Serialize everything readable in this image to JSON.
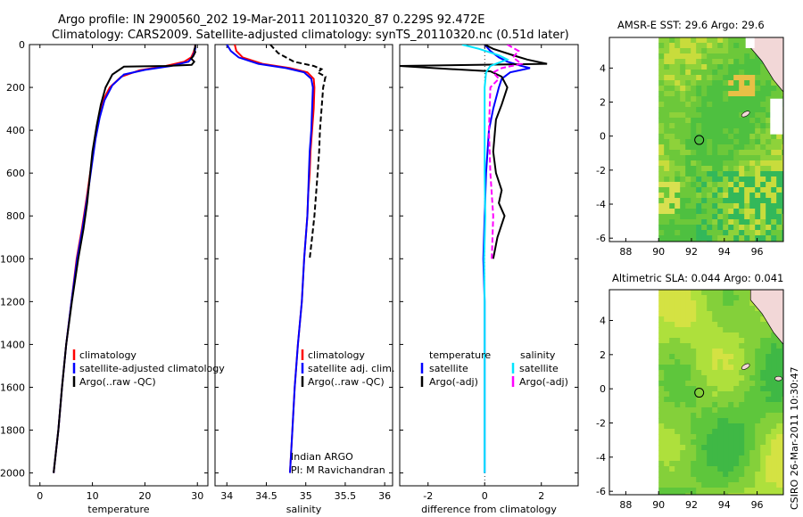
{
  "title": {
    "line1": "Argo profile: IN 2900560_202 19-Mar-2011 20110320_87 0.229S 92.472E",
    "line2": "Climatology: CARS2009. Satellite-adjusted climatology: synTS_20110320.nc (0.51d later)"
  },
  "colors": {
    "climatology": "#ff0000",
    "satellite": "#0000ff",
    "argo": "#000000",
    "sal_satellite": "#00e5ff",
    "sal_argo": "#ff00ff"
  },
  "watermark": "CSIRO 26-Mar-2011 10:30:47",
  "map_top": {
    "title": "AMSR-E SST: 29.6  Argo: 29.6",
    "field": "sst"
  },
  "map_bottom": {
    "title": "Altimetric SLA: 0.044  Argo: 0.041",
    "field": "sla"
  },
  "map_axes": {
    "xticks": [
      88,
      90,
      92,
      94,
      96
    ],
    "yticks": [
      4,
      2,
      0,
      -2,
      -4,
      -6
    ],
    "xlim": [
      87,
      97.6
    ],
    "ylim": [
      -6.2,
      5.8
    ],
    "data_xmin": 90,
    "float_lon": 92.472,
    "float_lat": -0.229
  },
  "chart_data": [
    {
      "type": "line",
      "id": "temperature",
      "xlabel": "temperature",
      "ylabel": "",
      "xlim": [
        -2,
        32
      ],
      "ylim": [
        0,
        2060
      ],
      "y_inverted": true,
      "xticks": [
        0,
        10,
        20,
        30
      ],
      "yticks": [
        0,
        200,
        400,
        600,
        800,
        1000,
        1200,
        1400,
        1600,
        1800,
        2000
      ],
      "legend": [
        "climatology",
        "satellite-adjusted climatology",
        "Argo(..raw -QC)"
      ],
      "series": [
        {
          "name": "climatology",
          "color": "climatology",
          "points": [
            [
              29.6,
              0
            ],
            [
              29.5,
              20
            ],
            [
              29.2,
              40
            ],
            [
              28.8,
              60
            ],
            [
              27.5,
              80
            ],
            [
              24,
              100
            ],
            [
              19,
              120
            ],
            [
              15.5,
              150
            ],
            [
              13.3,
              200
            ],
            [
              12,
              260
            ],
            [
              11.2,
              340
            ],
            [
              10.5,
              440
            ],
            [
              9.8,
              560
            ],
            [
              9,
              700
            ],
            [
              8,
              860
            ],
            [
              7,
              1000
            ],
            [
              6,
              1200
            ],
            [
              5,
              1400
            ],
            [
              4.2,
              1600
            ],
            [
              3.5,
              1800
            ],
            [
              2.6,
              2000
            ]
          ]
        },
        {
          "name": "satellite-adjusted climatology",
          "color": "satellite",
          "points": [
            [
              29.6,
              0
            ],
            [
              29.6,
              20
            ],
            [
              29.4,
              40
            ],
            [
              29,
              60
            ],
            [
              28.3,
              80
            ],
            [
              25,
              100
            ],
            [
              20,
              118
            ],
            [
              16,
              140
            ],
            [
              13.8,
              190
            ],
            [
              12.3,
              260
            ],
            [
              11.4,
              340
            ],
            [
              10.6,
              440
            ],
            [
              9.9,
              560
            ],
            [
              9.1,
              700
            ],
            [
              8.1,
              860
            ],
            [
              7.1,
              1000
            ],
            [
              6,
              1200
            ],
            [
              5,
              1400
            ],
            [
              4.2,
              1600
            ],
            [
              3.5,
              1800
            ],
            [
              2.6,
              2000
            ]
          ]
        },
        {
          "name": "Argo(..raw -QC)",
          "color": "argo",
          "points": [
            [
              29.6,
              0
            ],
            [
              29.6,
              10
            ],
            [
              29.4,
              25
            ],
            [
              29.6,
              35
            ],
            [
              29.2,
              55
            ],
            [
              28.8,
              65
            ],
            [
              29.4,
              80
            ],
            [
              28.9,
              95
            ],
            [
              24,
              100
            ],
            [
              16,
              103
            ],
            [
              13.8,
              140
            ],
            [
              12.5,
              200
            ],
            [
              11.6,
              280
            ],
            [
              10.8,
              380
            ],
            [
              10,
              500
            ],
            [
              9.5,
              620
            ],
            [
              9,
              740
            ],
            [
              8.3,
              860
            ],
            [
              7.3,
              1000
            ],
            [
              6.1,
              1200
            ],
            [
              5,
              1400
            ],
            [
              4.2,
              1600
            ],
            [
              3.5,
              1800
            ],
            [
              2.6,
              2000
            ]
          ]
        }
      ]
    },
    {
      "type": "line",
      "id": "salinity",
      "xlabel": "salinity",
      "ylabel": "",
      "xlim": [
        33.85,
        36.1
      ],
      "ylim": [
        0,
        2060
      ],
      "y_inverted": true,
      "xticks": [
        34,
        34.5,
        35,
        35.5,
        36
      ],
      "legend": [
        "climatology",
        "satellite adj. clim.",
        "Argo(..raw -QC)"
      ],
      "note": [
        "Indian ARGO",
        "PI: M Ravichandran"
      ],
      "series": [
        {
          "name": "climatology",
          "color": "climatology",
          "points": [
            [
              34.1,
              0
            ],
            [
              34.12,
              30
            ],
            [
              34.2,
              60
            ],
            [
              34.45,
              90
            ],
            [
              34.8,
              110
            ],
            [
              35.02,
              130
            ],
            [
              35.1,
              160
            ],
            [
              35.11,
              200
            ],
            [
              35.1,
              300
            ],
            [
              35.08,
              400
            ],
            [
              35.06,
              500
            ],
            [
              35.05,
              600
            ],
            [
              35.03,
              700
            ],
            [
              35.02,
              800
            ],
            [
              35.0,
              900
            ],
            [
              34.98,
              1000
            ],
            [
              34.95,
              1200
            ],
            [
              34.9,
              1400
            ],
            [
              34.86,
              1600
            ],
            [
              34.83,
              1800
            ],
            [
              34.8,
              2000
            ]
          ]
        },
        {
          "name": "satellite adj. clim.",
          "color": "satellite",
          "points": [
            [
              34.0,
              0
            ],
            [
              34.05,
              30
            ],
            [
              34.15,
              60
            ],
            [
              34.4,
              90
            ],
            [
              34.75,
              110
            ],
            [
              34.98,
              130
            ],
            [
              35.07,
              160
            ],
            [
              35.09,
              200
            ],
            [
              35.08,
              300
            ],
            [
              35.07,
              400
            ],
            [
              35.05,
              500
            ],
            [
              35.04,
              600
            ],
            [
              35.03,
              700
            ],
            [
              35.02,
              800
            ],
            [
              35.0,
              900
            ],
            [
              34.98,
              1000
            ],
            [
              34.95,
              1200
            ],
            [
              34.9,
              1400
            ],
            [
              34.86,
              1600
            ],
            [
              34.83,
              1800
            ],
            [
              34.8,
              2000
            ]
          ]
        },
        {
          "name": "Argo(..raw -QC)",
          "color": "argo",
          "points": [
            [
              34.55,
              0
            ],
            [
              34.6,
              20
            ],
            [
              34.65,
              40
            ],
            [
              34.75,
              60
            ],
            [
              34.85,
              80
            ],
            [
              35.1,
              100
            ],
            [
              35.2,
              115
            ],
            [
              35.15,
              130
            ],
            [
              35.25,
              150
            ],
            [
              35.22,
              200
            ],
            [
              35.2,
              300
            ],
            [
              35.18,
              400
            ],
            [
              35.17,
              500
            ],
            [
              35.15,
              600
            ],
            [
              35.13,
              700
            ],
            [
              35.11,
              800
            ],
            [
              35.08,
              900
            ],
            [
              35.05,
              1000
            ]
          ]
        }
      ]
    },
    {
      "type": "line",
      "id": "difference",
      "xlabel": "difference from climatology",
      "ylabel": "",
      "xlim": [
        -3,
        3.3
      ],
      "ylim": [
        0,
        2060
      ],
      "y_inverted": true,
      "xticks": [
        -2,
        0,
        2
      ],
      "legend_title": [
        "temperature",
        "salinity"
      ],
      "legend": [
        "satellite",
        "Argo(-adj)",
        "satellite",
        "Argo(-adj)"
      ],
      "series": [
        {
          "name": "temperature satellite",
          "color": "satellite",
          "points": [
            [
              0,
              0
            ],
            [
              0.2,
              30
            ],
            [
              0.5,
              60
            ],
            [
              0.8,
              80
            ],
            [
              1.3,
              100
            ],
            [
              1.6,
              110
            ],
            [
              0.9,
              130
            ],
            [
              0.6,
              160
            ],
            [
              0.5,
              200
            ],
            [
              0.3,
              300
            ],
            [
              0.15,
              400
            ],
            [
              0.05,
              600
            ],
            [
              0,
              800
            ],
            [
              -0.05,
              1000
            ],
            [
              0,
              1200
            ],
            [
              0,
              1400
            ],
            [
              0,
              1600
            ],
            [
              0,
              1800
            ],
            [
              0,
              2000
            ]
          ]
        },
        {
          "name": "temperature Argo(-adj)",
          "color": "argo",
          "points": [
            [
              0,
              0
            ],
            [
              0.3,
              20
            ],
            [
              1.0,
              50
            ],
            [
              1.5,
              70
            ],
            [
              2.2,
              90
            ],
            [
              -3,
              100
            ],
            [
              -1.8,
              110
            ],
            [
              0.2,
              125
            ],
            [
              0.6,
              150
            ],
            [
              0.8,
              200
            ],
            [
              0.6,
              280
            ],
            [
              0.4,
              350
            ],
            [
              0.3,
              500
            ],
            [
              0.4,
              600
            ],
            [
              0.6,
              680
            ],
            [
              0.5,
              740
            ],
            [
              0.7,
              800
            ],
            [
              0.45,
              900
            ],
            [
              0.3,
              1000
            ]
          ]
        },
        {
          "name": "salinity satellite",
          "color": "sal_satellite",
          "points": [
            [
              -0.8,
              0
            ],
            [
              -0.2,
              20
            ],
            [
              0.5,
              50
            ],
            [
              0.8,
              70
            ],
            [
              0.2,
              100
            ],
            [
              0.05,
              130
            ],
            [
              0,
              200
            ],
            [
              0,
              400
            ],
            [
              0,
              600
            ],
            [
              0.02,
              800
            ],
            [
              -0.02,
              1000
            ],
            [
              0,
              1200
            ],
            [
              0,
              1600
            ],
            [
              0,
              2000
            ]
          ]
        },
        {
          "name": "salinity Argo(-adj)",
          "color": "sal_argo",
          "points": [
            [
              0.8,
              0
            ],
            [
              1.2,
              30
            ],
            [
              1.0,
              60
            ],
            [
              1.3,
              90
            ],
            [
              0.6,
              110
            ],
            [
              0.3,
              130
            ],
            [
              0.5,
              160
            ],
            [
              0.2,
              200
            ],
            [
              0.15,
              400
            ],
            [
              0.2,
              600
            ],
            [
              0.3,
              800
            ],
            [
              0.25,
              1000
            ]
          ]
        }
      ]
    }
  ]
}
